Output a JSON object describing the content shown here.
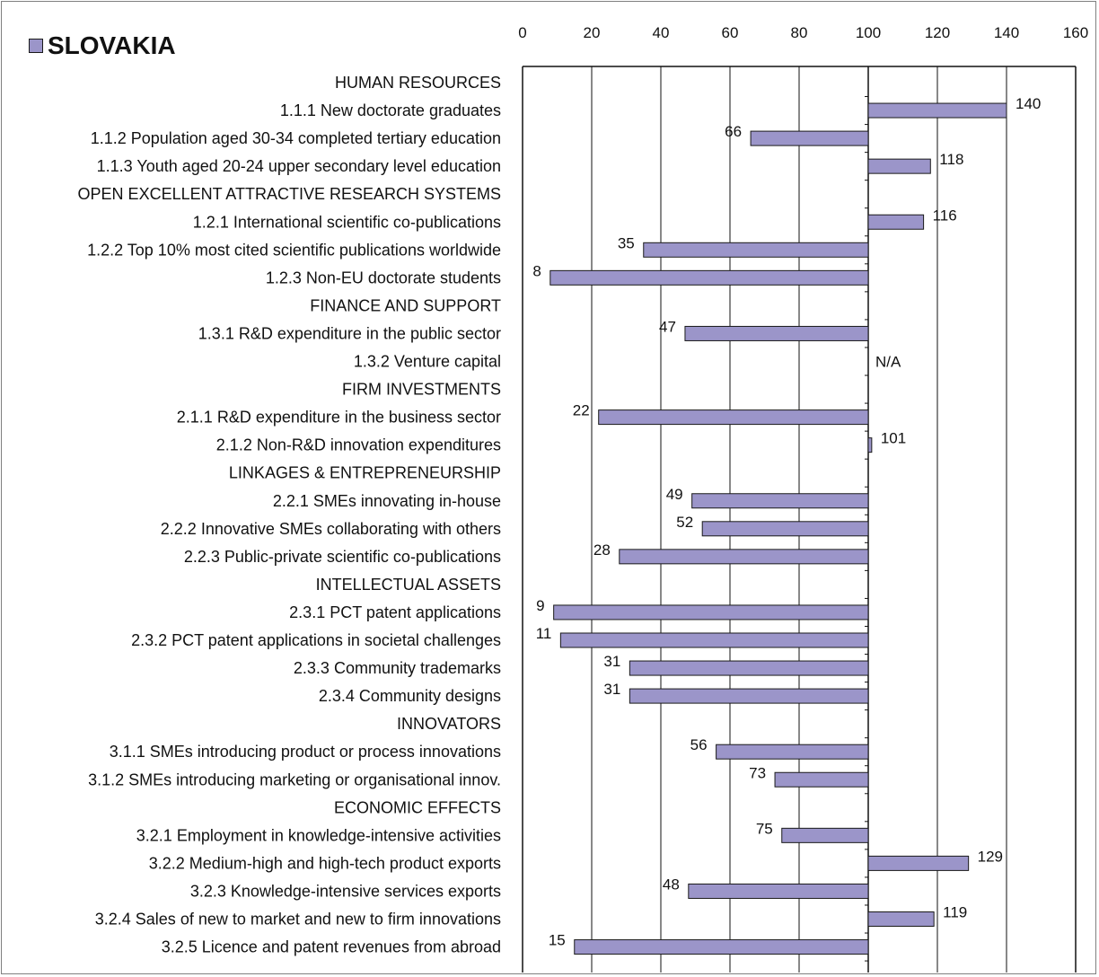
{
  "chart_data": {
    "type": "bar",
    "orientation": "horizontal",
    "legend": {
      "label": "SLOVAKIA",
      "placement": "top-left",
      "color": "#9b95c9"
    },
    "series": [
      {
        "name": "SLOVAKIA",
        "color": "#9b95c9"
      }
    ],
    "xlim": [
      0,
      160
    ],
    "baseline": 100,
    "xticks": [
      "0",
      "20",
      "40",
      "60",
      "80",
      "100",
      "120",
      "140",
      "160"
    ],
    "xtick_values": [
      0,
      20,
      40,
      60,
      80,
      100,
      120,
      140,
      160
    ],
    "grid": "vertical",
    "rows": [
      {
        "label": "HUMAN RESOURCES",
        "header": true
      },
      {
        "label": "1.1.1 New doctorate graduates",
        "value": 140,
        "display": "140"
      },
      {
        "label": "1.1.2 Population aged 30-34 completed tertiary education",
        "value": 66,
        "display": "66"
      },
      {
        "label": "1.1.3 Youth aged 20-24 upper secondary level education",
        "value": 118,
        "display": "118"
      },
      {
        "label": "OPEN EXCELLENT ATTRACTIVE RESEARCH SYSTEMS",
        "header": true
      },
      {
        "label": "1.2.1 International scientific co-publications",
        "value": 116,
        "display": "116"
      },
      {
        "label": "1.2.2 Top 10% most cited scientific publications worldwide",
        "value": 35,
        "display": "35"
      },
      {
        "label": "1.2.3 Non-EU doctorate students",
        "value": 8,
        "display": "8"
      },
      {
        "label": "FINANCE AND SUPPORT",
        "header": true
      },
      {
        "label": "1.3.1 R&D expenditure in the public sector",
        "value": 47,
        "display": "47"
      },
      {
        "label": "1.3.2 Venture capital",
        "value": null,
        "display": "N/A"
      },
      {
        "label": "FIRM INVESTMENTS",
        "header": true
      },
      {
        "label": "2.1.1 R&D expenditure in the business sector",
        "value": 22,
        "display": "22"
      },
      {
        "label": "2.1.2 Non-R&D innovation expenditures",
        "value": 101,
        "display": "101"
      },
      {
        "label": "LINKAGES & ENTREPRENEURSHIP",
        "header": true
      },
      {
        "label": "2.2.1 SMEs innovating in-house",
        "value": 49,
        "display": "49"
      },
      {
        "label": "2.2.2 Innovative SMEs collaborating with others",
        "value": 52,
        "display": "52"
      },
      {
        "label": "2.2.3 Public-private scientific co-publications",
        "value": 28,
        "display": "28"
      },
      {
        "label": "INTELLECTUAL ASSETS",
        "header": true
      },
      {
        "label": "2.3.1 PCT patent applications",
        "value": 9,
        "display": "9"
      },
      {
        "label": "2.3.2 PCT patent applications in societal challenges",
        "value": 11,
        "display": "11"
      },
      {
        "label": "2.3.3 Community trademarks",
        "value": 31,
        "display": "31"
      },
      {
        "label": "2.3.4 Community designs",
        "value": 31,
        "display": "31"
      },
      {
        "label": "INNOVATORS",
        "header": true
      },
      {
        "label": "3.1.1 SMEs introducing product or process innovations",
        "value": 56,
        "display": "56"
      },
      {
        "label": "3.1.2 SMEs introducing marketing or organisational innov.",
        "value": 73,
        "display": "73"
      },
      {
        "label": "ECONOMIC EFFECTS",
        "header": true
      },
      {
        "label": "3.2.1 Employment in knowledge-intensive activities",
        "value": 75,
        "display": "75"
      },
      {
        "label": "3.2.2 Medium-high and high-tech product exports",
        "value": 129,
        "display": "129"
      },
      {
        "label": "3.2.3 Knowledge-intensive services exports",
        "value": 48,
        "display": "48"
      },
      {
        "label": "3.2.4 Sales of new to market and new to firm innovations",
        "value": 119,
        "display": "119"
      },
      {
        "label": "3.2.5 Licence and patent revenues from abroad",
        "value": 15,
        "display": "15"
      }
    ]
  }
}
